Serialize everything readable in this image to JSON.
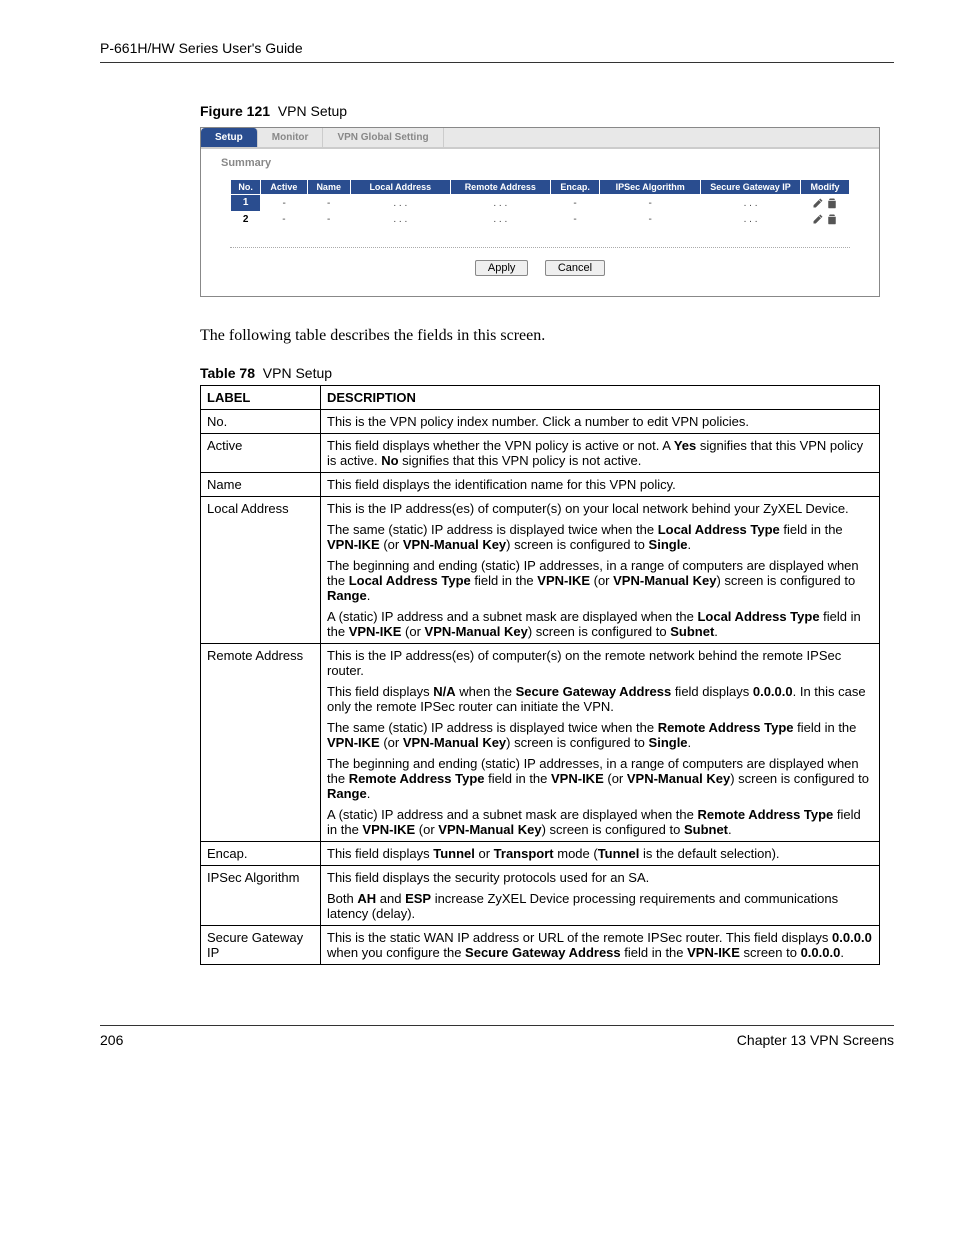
{
  "header": {
    "title": "P-661H/HW Series User's Guide"
  },
  "figure": {
    "label": "Figure 121",
    "title": "VPN Setup"
  },
  "screenshot": {
    "tabs": [
      "Setup",
      "Monitor",
      "VPN Global Setting"
    ],
    "active_tab_index": 0,
    "section": "Summary",
    "columns": [
      "No.",
      "Active",
      "Name",
      "Local Address",
      "Remote Address",
      "Encap.",
      "IPSec Algorithm",
      "Secure Gateway IP",
      "Modify"
    ],
    "rows": [
      {
        "no": "1",
        "active": "-",
        "name": "-",
        "local": ". . .",
        "remote": ". . .",
        "encap": "-",
        "algo": "-",
        "gw": ". . ."
      },
      {
        "no": "2",
        "active": "-",
        "name": "-",
        "local": ". . .",
        "remote": ". . .",
        "encap": "-",
        "algo": "-",
        "gw": ". . ."
      }
    ],
    "buttons": {
      "apply": "Apply",
      "cancel": "Cancel"
    },
    "colors": {
      "tab_active_bg": "#2a4d8f",
      "tab_active_fg": "#ffffff",
      "tab_inactive_fg": "#888888",
      "header_bg": "#2a4d8f",
      "header_fg": "#ffffff"
    }
  },
  "intro_text": "The following table describes the fields in this screen.",
  "table_caption": {
    "label": "Table 78",
    "title": "VPN Setup"
  },
  "desc_table": {
    "headers": [
      "LABEL",
      "DESCRIPTION"
    ],
    "rows": [
      {
        "label": "No.",
        "paras": [
          [
            {
              "t": "This is the VPN policy index number. Click a number to edit VPN policies."
            }
          ]
        ]
      },
      {
        "label": "Active",
        "paras": [
          [
            {
              "t": "This field displays whether the VPN policy is active or not. A "
            },
            {
              "b": "Yes"
            },
            {
              "t": " signifies that this VPN policy is active. "
            },
            {
              "b": "No"
            },
            {
              "t": " signifies that this VPN policy is not active."
            }
          ]
        ]
      },
      {
        "label": "Name",
        "paras": [
          [
            {
              "t": "This field displays the identification name for this VPN policy."
            }
          ]
        ]
      },
      {
        "label": "Local Address",
        "paras": [
          [
            {
              "t": "This is the IP address(es) of computer(s) on your local network behind your ZyXEL Device."
            }
          ],
          [
            {
              "t": "The same (static) IP address is displayed twice when the "
            },
            {
              "b": "Local Address Type"
            },
            {
              "t": " field in the "
            },
            {
              "b": "VPN-IKE"
            },
            {
              "t": " (or "
            },
            {
              "b": "VPN-Manual Key"
            },
            {
              "t": ") screen is configured to "
            },
            {
              "b": "Single"
            },
            {
              "t": "."
            }
          ],
          [
            {
              "t": "The beginning and ending (static) IP addresses, in a range of computers are displayed when the "
            },
            {
              "b": "Local Address Type"
            },
            {
              "t": " field in the "
            },
            {
              "b": "VPN-IKE"
            },
            {
              "t": " (or "
            },
            {
              "b": "VPN-Manual Key"
            },
            {
              "t": ") screen is configured to "
            },
            {
              "b": "Range"
            },
            {
              "t": "."
            }
          ],
          [
            {
              "t": "A (static) IP address and a subnet mask are displayed when the "
            },
            {
              "b": "Local Address Type"
            },
            {
              "t": " field in the "
            },
            {
              "b": "VPN-IKE"
            },
            {
              "t": " (or "
            },
            {
              "b": "VPN-Manual Key"
            },
            {
              "t": ") screen is configured to "
            },
            {
              "b": "Subnet"
            },
            {
              "t": "."
            }
          ]
        ]
      },
      {
        "label": "Remote Address",
        "paras": [
          [
            {
              "t": "This is the IP address(es) of computer(s) on the remote network behind the remote IPSec router."
            }
          ],
          [
            {
              "t": "This field displays "
            },
            {
              "b": "N/A"
            },
            {
              "t": " when the "
            },
            {
              "b": "Secure Gateway Address"
            },
            {
              "t": " field displays "
            },
            {
              "b": "0.0.0.0"
            },
            {
              "t": ". In this case only the remote IPSec router can initiate the VPN."
            }
          ],
          [
            {
              "t": "The same (static) IP address is displayed twice when the "
            },
            {
              "b": "Remote Address Type"
            },
            {
              "t": " field in the "
            },
            {
              "b": "VPN-IKE"
            },
            {
              "t": " (or "
            },
            {
              "b": "VPN-Manual Key"
            },
            {
              "t": ") screen is configured to "
            },
            {
              "b": "Single"
            },
            {
              "t": "."
            }
          ],
          [
            {
              "t": "The beginning and ending (static) IP addresses, in a range of computers are displayed when the "
            },
            {
              "b": "Remote Address Type"
            },
            {
              "t": " field in the "
            },
            {
              "b": "VPN-IKE"
            },
            {
              "t": " (or "
            },
            {
              "b": "VPN-Manual Key"
            },
            {
              "t": ") screen is configured to "
            },
            {
              "b": "Range"
            },
            {
              "t": "."
            }
          ],
          [
            {
              "t": "A (static) IP address and a subnet mask are displayed when the "
            },
            {
              "b": "Remote Address Type"
            },
            {
              "t": " field in the "
            },
            {
              "b": "VPN-IKE"
            },
            {
              "t": " (or "
            },
            {
              "b": "VPN-Manual Key"
            },
            {
              "t": ") screen is configured to "
            },
            {
              "b": "Subnet"
            },
            {
              "t": "."
            }
          ]
        ]
      },
      {
        "label": "Encap.",
        "paras": [
          [
            {
              "t": "This field displays "
            },
            {
              "b": "Tunnel"
            },
            {
              "t": " or "
            },
            {
              "b": "Transport"
            },
            {
              "t": " mode ("
            },
            {
              "b": "Tunnel"
            },
            {
              "t": " is the default selection)."
            }
          ]
        ]
      },
      {
        "label": "IPSec Algorithm",
        "paras": [
          [
            {
              "t": "This field displays the security protocols used for an SA."
            }
          ],
          [
            {
              "t": "Both "
            },
            {
              "b": "AH"
            },
            {
              "t": " and "
            },
            {
              "b": "ESP"
            },
            {
              "t": " increase ZyXEL Device processing requirements and communications latency (delay)."
            }
          ]
        ]
      },
      {
        "label": "Secure Gateway IP",
        "paras": [
          [
            {
              "t": "This is the static WAN IP address or URL of the remote IPSec router. This field displays "
            },
            {
              "b": "0.0.0.0"
            },
            {
              "t": " when you configure the "
            },
            {
              "b": "Secure Gateway Address"
            },
            {
              "t": " field in the "
            },
            {
              "b": "VPN-IKE"
            },
            {
              "t": " screen to "
            },
            {
              "b": "0.0.0.0"
            },
            {
              "t": "."
            }
          ]
        ]
      }
    ]
  },
  "footer": {
    "page": "206",
    "chapter": "Chapter 13 VPN Screens"
  }
}
